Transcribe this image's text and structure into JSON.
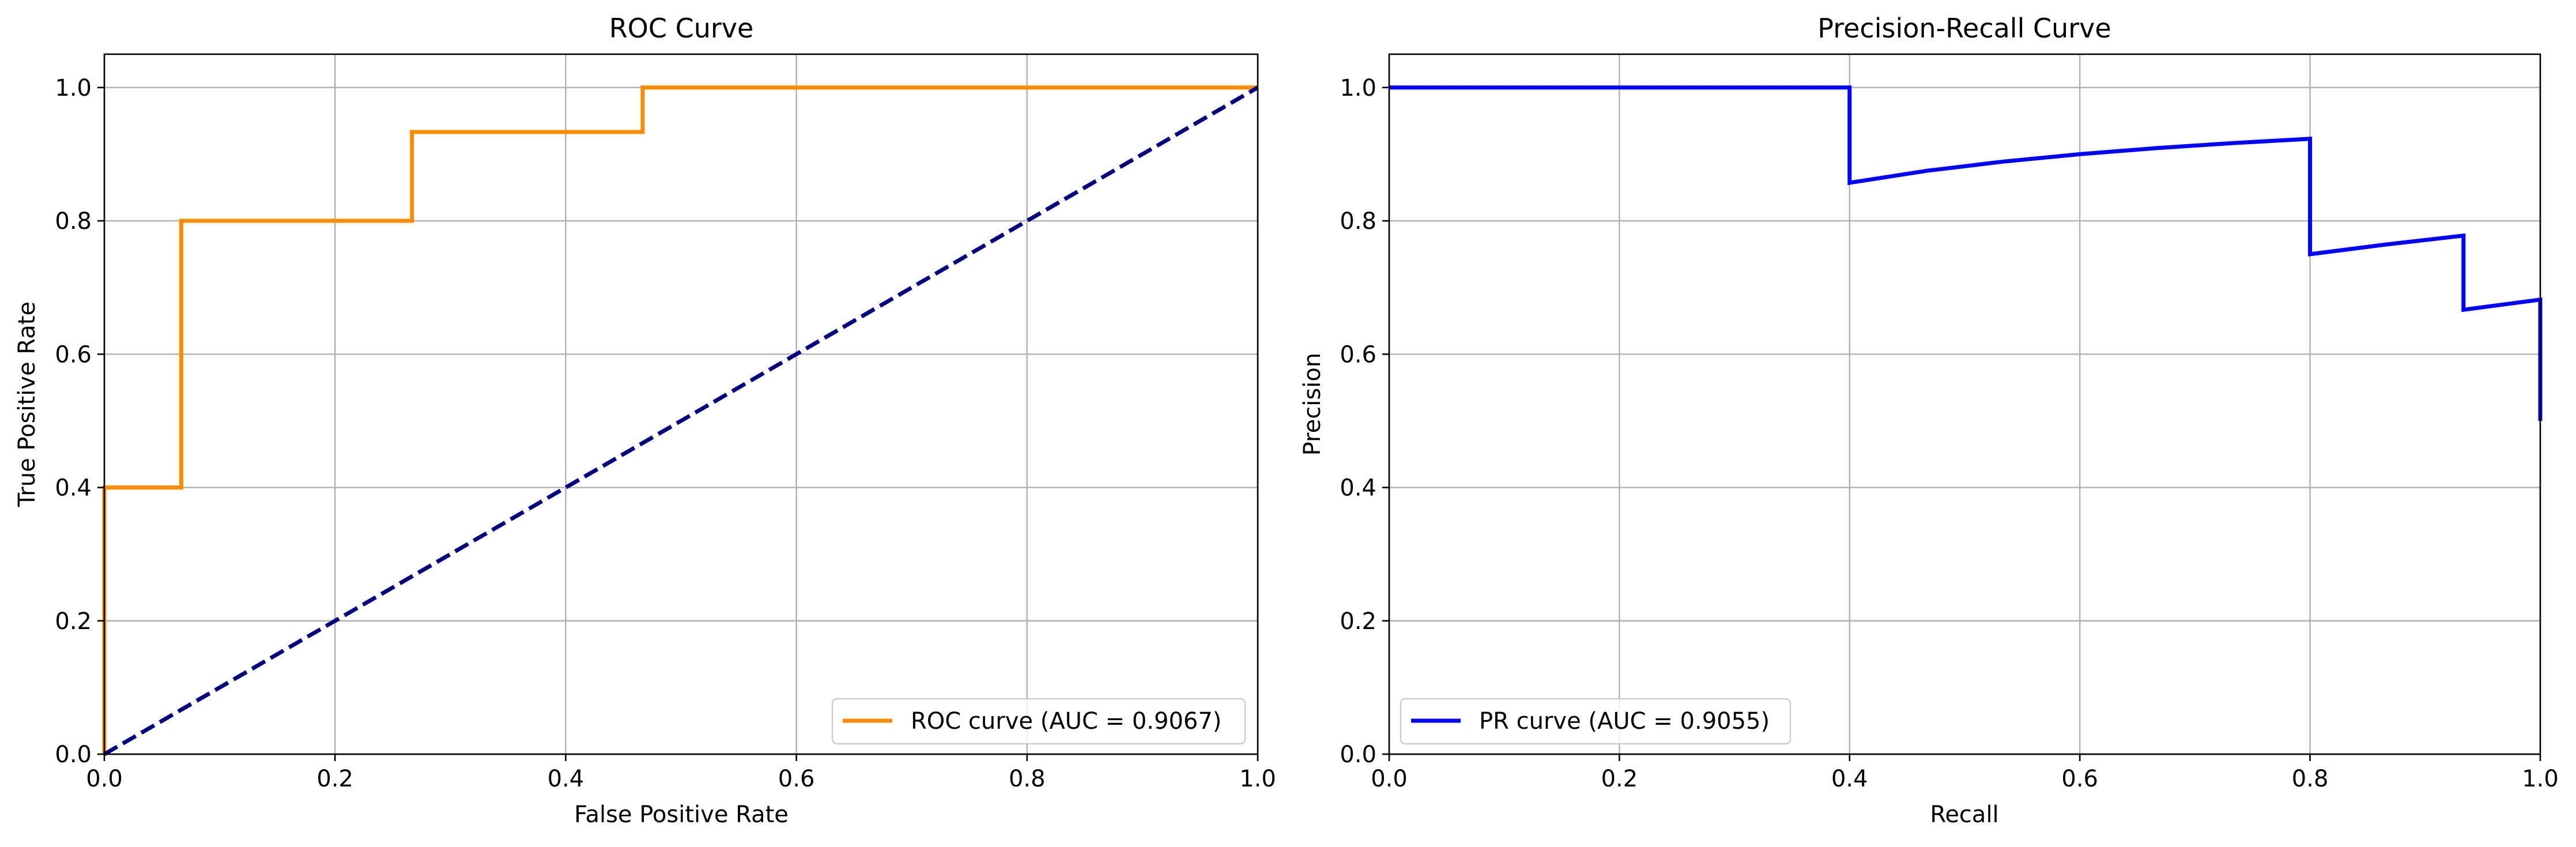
{
  "chart_data": [
    {
      "type": "line",
      "title": "ROC Curve",
      "xlabel": "False Positive Rate",
      "ylabel": "True Positive Rate",
      "xlim": [
        0.0,
        1.0
      ],
      "ylim": [
        0.0,
        1.05
      ],
      "xticks": [
        "0.0",
        "0.2",
        "0.4",
        "0.6",
        "0.8",
        "1.0"
      ],
      "yticks": [
        "0.0",
        "0.2",
        "0.4",
        "0.6",
        "0.8",
        "1.0"
      ],
      "grid": true,
      "legend_position": "lower-right",
      "series": [
        {
          "name": "ROC curve (AUC = 0.9067)",
          "color": "#ff8c00",
          "style": "solid",
          "x": [
            0.0,
            0.0,
            0.0,
            0.0667,
            0.0667,
            0.2667,
            0.2667,
            0.4667,
            0.4667,
            1.0
          ],
          "y": [
            0.0,
            0.0667,
            0.4,
            0.4,
            0.8,
            0.8,
            0.9333,
            0.9333,
            1.0,
            1.0
          ]
        },
        {
          "name": "",
          "color": "#000080",
          "style": "dashed",
          "x": [
            0.0,
            1.0
          ],
          "y": [
            0.0,
            1.0
          ]
        }
      ]
    },
    {
      "type": "line",
      "title": "Precision-Recall Curve",
      "xlabel": "Recall",
      "ylabel": "Precision",
      "xlim": [
        0.0,
        1.0
      ],
      "ylim": [
        0.0,
        1.05
      ],
      "xticks": [
        "0.0",
        "0.2",
        "0.4",
        "0.6",
        "0.8",
        "1.0"
      ],
      "yticks": [
        "0.0",
        "0.2",
        "0.4",
        "0.6",
        "0.8",
        "1.0"
      ],
      "grid": true,
      "legend_position": "lower-left",
      "series": [
        {
          "name": "PR curve (AUC = 0.9055)",
          "color": "#0000ff",
          "style": "solid",
          "x": [
            0.0,
            0.4,
            0.4,
            0.4667,
            0.5333,
            0.6,
            0.6667,
            0.7333,
            0.8,
            0.8,
            0.8667,
            0.9333,
            0.9333,
            1.0,
            1.0
          ],
          "y": [
            1.0,
            1.0,
            0.8571,
            0.875,
            0.8889,
            0.9,
            0.9091,
            0.9167,
            0.9231,
            0.75,
            0.7647,
            0.7778,
            0.6667,
            0.6818,
            0.5
          ]
        }
      ]
    }
  ]
}
